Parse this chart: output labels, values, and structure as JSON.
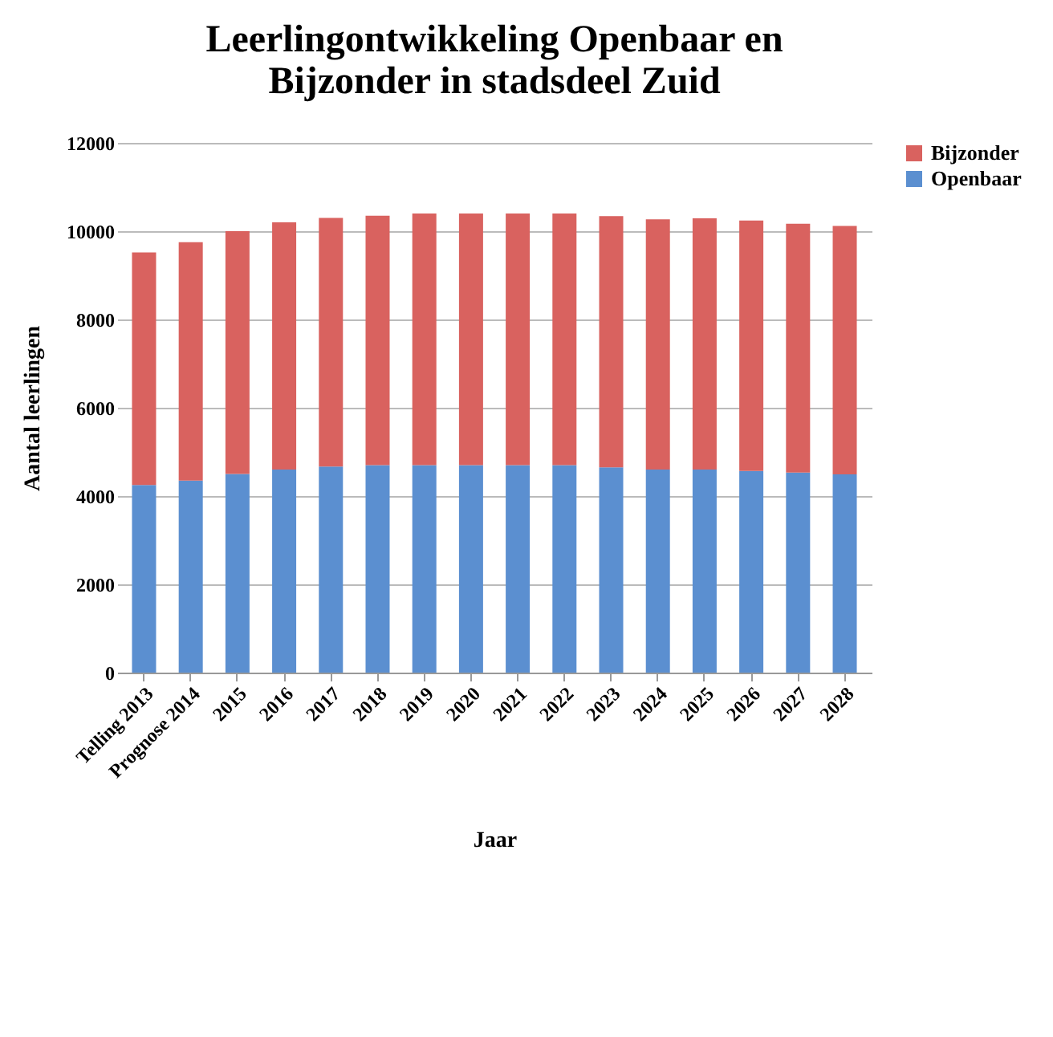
{
  "chart_data": {
    "type": "bar",
    "title": "Leerlingontwikkeling Openbaar en Bijzonder in stadsdeel Zuid",
    "xlabel": "Jaar",
    "ylabel": "Aantal leerlingen",
    "categories": [
      "Telling 2013",
      "Prognose 2014",
      "2015",
      "2016",
      "2017",
      "2018",
      "2019",
      "2020",
      "2021",
      "2022",
      "2023",
      "2024",
      "2025",
      "2026",
      "2027",
      "2028"
    ],
    "stacked": true,
    "series": [
      {
        "name": "Openbaar",
        "color": "#5b8fd0",
        "values": [
          4250,
          4350,
          4500,
          4600,
          4670,
          4700,
          4700,
          4700,
          4700,
          4700,
          4650,
          4600,
          4600,
          4570,
          4530,
          4490
        ]
      },
      {
        "name": "Bijzonder",
        "color": "#d9625f",
        "values": [
          5270,
          5400,
          5500,
          5600,
          5630,
          5650,
          5700,
          5700,
          5700,
          5700,
          5690,
          5670,
          5690,
          5670,
          5640,
          5630
        ]
      }
    ],
    "ylim": [
      0,
      12000
    ],
    "yticks": [
      0,
      2000,
      4000,
      6000,
      8000,
      10000,
      12000
    ],
    "grid": "y",
    "legend": "right"
  }
}
